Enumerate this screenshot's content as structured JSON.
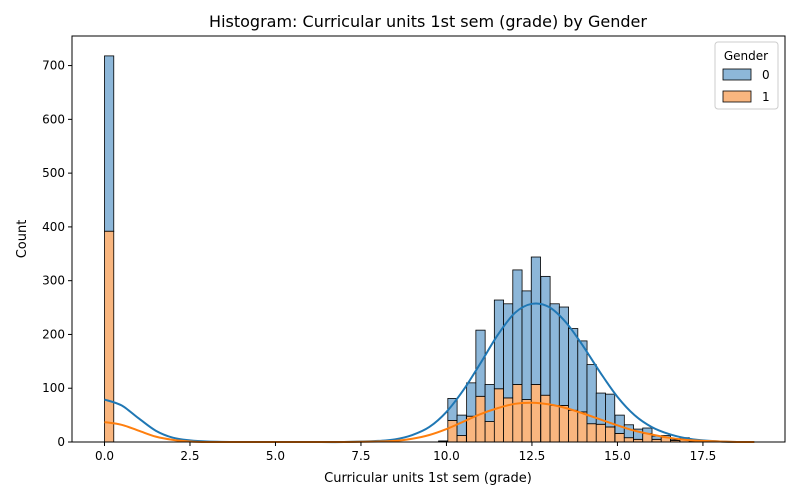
{
  "chart_data": {
    "type": "bar",
    "stacked": true,
    "title": "Histogram: Curricular units 1st sem (grade) by Gender",
    "xlabel": "Curricular units 1st sem (grade)",
    "ylabel": "Count",
    "xlim": [
      -0.95,
      19.9
    ],
    "ylim": [
      0,
      755
    ],
    "xticks": [
      "0.0",
      "2.5",
      "5.0",
      "7.5",
      "10.0",
      "12.5",
      "15.0",
      "17.5"
    ],
    "xtick_values": [
      0,
      2.5,
      5,
      7.5,
      10,
      12.5,
      15,
      17.5
    ],
    "yticks": [
      "0",
      "100",
      "200",
      "300",
      "400",
      "500",
      "600",
      "700"
    ],
    "ytick_values": [
      0,
      100,
      200,
      300,
      400,
      500,
      600,
      700
    ],
    "grid": false,
    "legend": {
      "title": "Gender",
      "placement": "top-right",
      "entries": [
        "0",
        "1"
      ]
    },
    "bin_width": 0.2714,
    "bins": [
      {
        "x0": 0.0,
        "series_1": 392,
        "series_0": 326
      },
      {
        "x0": 9.77,
        "series_1": 1,
        "series_0": 1
      },
      {
        "x0": 10.04,
        "series_1": 40,
        "series_0": 41
      },
      {
        "x0": 10.31,
        "series_1": 12,
        "series_0": 38
      },
      {
        "x0": 10.59,
        "series_1": 48,
        "series_0": 62
      },
      {
        "x0": 10.86,
        "series_1": 85,
        "series_0": 123
      },
      {
        "x0": 11.13,
        "series_1": 38,
        "series_0": 69
      },
      {
        "x0": 11.4,
        "series_1": 99,
        "series_0": 165
      },
      {
        "x0": 11.67,
        "series_1": 82,
        "series_0": 175
      },
      {
        "x0": 11.94,
        "series_1": 107,
        "series_0": 213
      },
      {
        "x0": 12.21,
        "series_1": 79,
        "series_0": 202
      },
      {
        "x0": 12.48,
        "series_1": 107,
        "series_0": 237
      },
      {
        "x0": 12.76,
        "series_1": 87,
        "series_0": 221
      },
      {
        "x0": 13.03,
        "series_1": 68,
        "series_0": 189
      },
      {
        "x0": 13.3,
        "series_1": 68,
        "series_0": 183
      },
      {
        "x0": 13.57,
        "series_1": 59,
        "series_0": 152
      },
      {
        "x0": 13.84,
        "series_1": 56,
        "series_0": 132
      },
      {
        "x0": 14.11,
        "series_1": 34,
        "series_0": 110
      },
      {
        "x0": 14.38,
        "series_1": 33,
        "series_0": 58
      },
      {
        "x0": 14.65,
        "series_1": 28,
        "series_0": 61
      },
      {
        "x0": 14.93,
        "series_1": 16,
        "series_0": 34
      },
      {
        "x0": 15.2,
        "series_1": 8,
        "series_0": 24
      },
      {
        "x0": 15.47,
        "series_1": 5,
        "series_0": 19
      },
      {
        "x0": 15.74,
        "series_1": 16,
        "series_0": 10
      },
      {
        "x0": 16.01,
        "series_1": 5,
        "series_0": 6
      },
      {
        "x0": 16.28,
        "series_1": 9,
        "series_0": 3
      },
      {
        "x0": 16.55,
        "series_1": 3,
        "series_0": 1
      },
      {
        "x0": 16.83,
        "series_1": 6,
        "series_0": 2
      },
      {
        "x0": 17.1,
        "series_1": 2,
        "series_0": 1
      }
    ],
    "kde": [
      {
        "series": "0",
        "x": [
          0,
          0.5,
          1,
          1.5,
          2,
          2.5,
          3,
          4,
          5,
          6,
          7,
          8,
          8.5,
          9,
          9.5,
          10,
          10.5,
          11,
          11.5,
          12,
          12.5,
          13,
          13.5,
          14,
          14.5,
          15,
          15.5,
          16,
          16.5,
          17,
          17.5,
          18,
          18.5,
          19
        ],
        "y": [
          79,
          68,
          44,
          21,
          8,
          3,
          1,
          0,
          0,
          0,
          0,
          2,
          5,
          13,
          28,
          56,
          97,
          147,
          199,
          240,
          257,
          251,
          222,
          178,
          129,
          84,
          50,
          28,
          15,
          7,
          3,
          1,
          0,
          0
        ]
      },
      {
        "series": "1",
        "x": [
          0,
          0.5,
          1,
          1.5,
          2,
          2.5,
          3,
          4,
          5,
          6,
          7,
          8,
          8.5,
          9,
          9.5,
          10,
          10.5,
          11,
          11.5,
          12,
          12.5,
          13,
          13.5,
          14,
          14.5,
          15,
          15.5,
          16,
          16.5,
          17,
          17.5,
          18,
          18.5,
          19
        ],
        "y": [
          37,
          32,
          21,
          10,
          4,
          1,
          0,
          0,
          0,
          0,
          0,
          1,
          2,
          6,
          13,
          24,
          38,
          52,
          63,
          71,
          73,
          70,
          63,
          53,
          42,
          31,
          21,
          14,
          8,
          4,
          2,
          1,
          0,
          0
        ]
      }
    ],
    "colors": {
      "series_0_fill": "#8db7d9",
      "series_1_fill": "#f9b67f",
      "series_0_line": "#1f77b4",
      "series_1_line": "#ff7f0e",
      "edge": "#000000"
    }
  }
}
